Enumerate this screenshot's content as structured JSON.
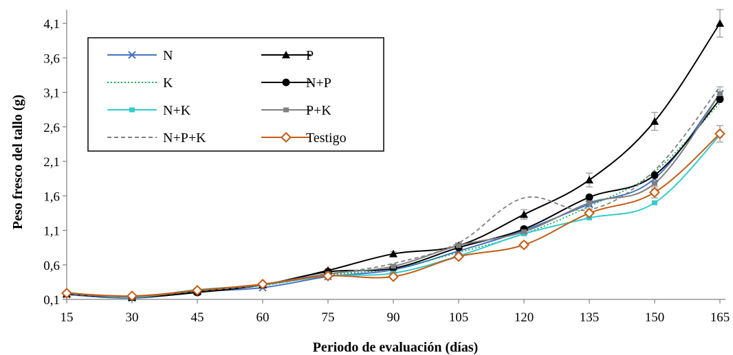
{
  "chart_data": {
    "type": "line",
    "title": "",
    "xlabel": "Periodo de evaluación (días)",
    "ylabel": "Peso fresco del tallo (g)",
    "x": [
      15,
      30,
      45,
      60,
      75,
      90,
      105,
      120,
      135,
      150,
      165
    ],
    "x_ticks": [
      "15",
      "30",
      "45",
      "60",
      "75",
      "90",
      "105",
      "120",
      "135",
      "150",
      "165"
    ],
    "y_ticks": [
      "0,1",
      "0,6",
      "1,1",
      "1,6",
      "2,1",
      "2,6",
      "3,1",
      "3,6",
      "4,1"
    ],
    "ylim": [
      0.1,
      4.1
    ],
    "grid": false,
    "legend_position": "top-left",
    "series": [
      {
        "name": "N",
        "color": "#4472C4",
        "marker": "x",
        "dash": "solid",
        "values": [
          0.17,
          0.12,
          0.21,
          0.27,
          0.43,
          0.53,
          0.8,
          1.1,
          1.48,
          1.85,
          3.08
        ]
      },
      {
        "name": "P",
        "color": "#000000",
        "marker": "triangle",
        "dash": "solid",
        "values": [
          0.18,
          0.13,
          0.22,
          0.31,
          0.52,
          0.76,
          0.88,
          1.33,
          1.83,
          2.68,
          4.1
        ],
        "error": [
          0.01,
          0.01,
          0.01,
          0.01,
          0.02,
          0.03,
          0.04,
          0.07,
          0.1,
          0.13,
          0.2
        ]
      },
      {
        "name": "K",
        "color": "#00B050",
        "marker": "none",
        "dash": "dotted",
        "values": [
          0.18,
          0.14,
          0.22,
          0.3,
          0.45,
          0.55,
          0.78,
          1.05,
          1.45,
          1.95,
          2.95
        ]
      },
      {
        "name": "N+P",
        "color": "#000000",
        "marker": "circle",
        "dash": "solid",
        "values": [
          0.18,
          0.13,
          0.2,
          0.31,
          0.5,
          0.55,
          0.85,
          1.12,
          1.58,
          1.9,
          3.0
        ]
      },
      {
        "name": "N+K",
        "color": "#33CCCC",
        "marker": "square",
        "dash": "solid",
        "values": [
          0.2,
          0.13,
          0.24,
          0.31,
          0.44,
          0.48,
          0.73,
          1.05,
          1.28,
          1.5,
          2.48
        ]
      },
      {
        "name": "P+K",
        "color": "#808080",
        "marker": "square",
        "dash": "solid",
        "values": [
          0.19,
          0.14,
          0.23,
          0.32,
          0.47,
          0.58,
          0.88,
          1.08,
          1.5,
          1.78,
          3.08
        ],
        "error": [
          0.01,
          0.01,
          0.01,
          0.01,
          0.02,
          0.02,
          0.03,
          0.04,
          0.06,
          0.08,
          0.1
        ]
      },
      {
        "name": "N+P+K",
        "color": "#7F7F7F",
        "marker": "none",
        "dash": "dashed",
        "values": [
          0.18,
          0.14,
          0.22,
          0.31,
          0.46,
          0.62,
          0.92,
          1.57,
          1.4,
          1.97,
          3.18
        ]
      },
      {
        "name": "Testigo",
        "color": "#C55A11",
        "marker": "diamond",
        "dash": "solid",
        "values": [
          0.19,
          0.15,
          0.23,
          0.32,
          0.44,
          0.43,
          0.72,
          0.89,
          1.35,
          1.65,
          2.5
        ],
        "error": [
          0.01,
          0.01,
          0.01,
          0.01,
          0.02,
          0.02,
          0.03,
          0.04,
          0.06,
          0.08,
          0.12
        ]
      }
    ]
  }
}
